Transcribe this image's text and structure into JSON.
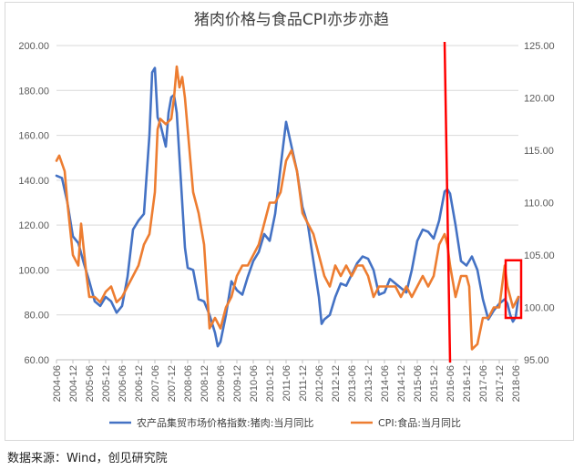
{
  "chart_data": {
    "type": "line",
    "title": "猪肉价格与食品CPI亦步亦趋",
    "y_left": {
      "ylim": [
        60,
        200
      ],
      "ticks": [
        "60.00",
        "80.00",
        "100.00",
        "120.00",
        "140.00",
        "160.00",
        "180.00",
        "200.00"
      ]
    },
    "y_right": {
      "ylim": [
        95,
        125
      ],
      "ticks": [
        "95.00",
        "100.00",
        "105.00",
        "110.00",
        "115.00",
        "120.00",
        "125.00"
      ]
    },
    "x_ticks": [
      "2004-06",
      "2004-12",
      "2005-06",
      "2005-12",
      "2006-06",
      "2006-12",
      "2007-06",
      "2007-12",
      "2008-06",
      "2008-12",
      "2009-06",
      "2009-12",
      "2010-06",
      "2010-12",
      "2011-06",
      "2011-12",
      "2012-06",
      "2012-12",
      "2013-06",
      "2013-12",
      "2014-06",
      "2014-12",
      "2015-06",
      "2015-12",
      "2016-06",
      "2016-12",
      "2017-06",
      "2017-12",
      "2018-06"
    ],
    "grid": "horizontal",
    "legend_position": "bottom",
    "series": [
      {
        "name": "农产品集贸市场价格指数:猪肉:当月同比",
        "axis": "left",
        "color": "#4472c4",
        "points": [
          [
            "2004-06",
            142
          ],
          [
            "2004-08",
            141
          ],
          [
            "2004-10",
            130
          ],
          [
            "2004-12",
            115
          ],
          [
            "2005-02",
            112
          ],
          [
            "2005-04",
            103
          ],
          [
            "2005-06",
            95
          ],
          [
            "2005-08",
            86
          ],
          [
            "2005-10",
            84
          ],
          [
            "2005-12",
            88
          ],
          [
            "2006-02",
            86
          ],
          [
            "2006-04",
            81
          ],
          [
            "2006-06",
            84
          ],
          [
            "2006-08",
            97
          ],
          [
            "2006-10",
            118
          ],
          [
            "2006-12",
            122
          ],
          [
            "2007-02",
            125
          ],
          [
            "2007-04",
            160
          ],
          [
            "2007-05",
            188
          ],
          [
            "2007-06",
            190
          ],
          [
            "2007-07",
            168
          ],
          [
            "2007-08",
            165
          ],
          [
            "2007-10",
            155
          ],
          [
            "2007-11",
            170
          ],
          [
            "2007-12",
            177
          ],
          [
            "2008-01",
            178
          ],
          [
            "2008-02",
            170
          ],
          [
            "2008-03",
            150
          ],
          [
            "2008-04",
            130
          ],
          [
            "2008-05",
            110
          ],
          [
            "2008-06",
            101
          ],
          [
            "2008-08",
            100
          ],
          [
            "2008-10",
            87
          ],
          [
            "2008-12",
            86
          ],
          [
            "2009-02",
            80
          ],
          [
            "2009-04",
            72
          ],
          [
            "2009-05",
            66
          ],
          [
            "2009-06",
            68
          ],
          [
            "2009-08",
            80
          ],
          [
            "2009-10",
            95
          ],
          [
            "2009-12",
            91
          ],
          [
            "2010-02",
            89
          ],
          [
            "2010-04",
            97
          ],
          [
            "2010-06",
            104
          ],
          [
            "2010-08",
            108
          ],
          [
            "2010-10",
            116
          ],
          [
            "2010-12",
            113
          ],
          [
            "2011-02",
            125
          ],
          [
            "2011-04",
            146
          ],
          [
            "2011-06",
            166
          ],
          [
            "2011-08",
            155
          ],
          [
            "2011-10",
            144
          ],
          [
            "2011-12",
            128
          ],
          [
            "2012-02",
            120
          ],
          [
            "2012-04",
            104
          ],
          [
            "2012-06",
            88
          ],
          [
            "2012-07",
            76
          ],
          [
            "2012-08",
            78
          ],
          [
            "2012-10",
            80
          ],
          [
            "2012-12",
            88
          ],
          [
            "2013-02",
            94
          ],
          [
            "2013-04",
            93
          ],
          [
            "2013-06",
            98
          ],
          [
            "2013-08",
            103
          ],
          [
            "2013-10",
            106
          ],
          [
            "2013-12",
            105
          ],
          [
            "2014-02",
            100
          ],
          [
            "2014-04",
            89
          ],
          [
            "2014-06",
            90
          ],
          [
            "2014-08",
            96
          ],
          [
            "2014-10",
            94
          ],
          [
            "2014-12",
            92
          ],
          [
            "2015-02",
            90
          ],
          [
            "2015-04",
            100
          ],
          [
            "2015-06",
            113
          ],
          [
            "2015-08",
            118
          ],
          [
            "2015-10",
            117
          ],
          [
            "2015-12",
            114
          ],
          [
            "2016-02",
            122
          ],
          [
            "2016-04",
            135
          ],
          [
            "2016-05",
            136
          ],
          [
            "2016-06",
            134
          ],
          [
            "2016-08",
            120
          ],
          [
            "2016-10",
            104
          ],
          [
            "2016-12",
            102
          ],
          [
            "2017-02",
            106
          ],
          [
            "2017-04",
            100
          ],
          [
            "2017-06",
            87
          ],
          [
            "2017-08",
            78
          ],
          [
            "2017-10",
            82
          ],
          [
            "2017-12",
            85
          ],
          [
            "2018-02",
            87
          ],
          [
            "2018-03",
            85
          ],
          [
            "2018-04",
            80
          ],
          [
            "2018-05",
            77
          ],
          [
            "2018-06",
            79
          ],
          [
            "2018-07",
            88
          ]
        ]
      },
      {
        "name": "CPI:食品:当月同比",
        "axis": "right",
        "color": "#ed7d31",
        "points": [
          [
            "2004-06",
            114
          ],
          [
            "2004-07",
            114.5
          ],
          [
            "2004-09",
            113
          ],
          [
            "2004-10",
            110
          ],
          [
            "2004-12",
            105
          ],
          [
            "2005-02",
            104
          ],
          [
            "2005-03",
            108
          ],
          [
            "2005-05",
            103
          ],
          [
            "2005-06",
            101
          ],
          [
            "2005-08",
            101
          ],
          [
            "2005-10",
            100.5
          ],
          [
            "2005-12",
            101.5
          ],
          [
            "2006-02",
            102
          ],
          [
            "2006-04",
            100.5
          ],
          [
            "2006-06",
            101
          ],
          [
            "2006-08",
            102
          ],
          [
            "2006-10",
            103
          ],
          [
            "2006-12",
            104
          ],
          [
            "2007-02",
            106
          ],
          [
            "2007-04",
            107
          ],
          [
            "2007-06",
            111
          ],
          [
            "2007-07",
            117
          ],
          [
            "2007-08",
            118
          ],
          [
            "2007-10",
            117.5
          ],
          [
            "2007-12",
            118
          ],
          [
            "2008-01",
            120
          ],
          [
            "2008-02",
            123
          ],
          [
            "2008-03",
            121
          ],
          [
            "2008-04",
            122
          ],
          [
            "2008-05",
            120
          ],
          [
            "2008-06",
            117
          ],
          [
            "2008-08",
            111
          ],
          [
            "2008-10",
            109
          ],
          [
            "2008-12",
            106
          ],
          [
            "2009-02",
            98
          ],
          [
            "2009-04",
            99
          ],
          [
            "2009-06",
            98
          ],
          [
            "2009-08",
            100
          ],
          [
            "2009-10",
            101
          ],
          [
            "2009-12",
            103
          ],
          [
            "2010-02",
            104
          ],
          [
            "2010-04",
            104
          ],
          [
            "2010-06",
            105
          ],
          [
            "2010-08",
            106
          ],
          [
            "2010-10",
            108
          ],
          [
            "2010-12",
            110
          ],
          [
            "2011-02",
            110
          ],
          [
            "2011-04",
            111
          ],
          [
            "2011-06",
            114
          ],
          [
            "2011-08",
            115
          ],
          [
            "2011-10",
            113
          ],
          [
            "2011-12",
            109
          ],
          [
            "2012-02",
            108
          ],
          [
            "2012-04",
            107
          ],
          [
            "2012-06",
            105
          ],
          [
            "2012-08",
            103
          ],
          [
            "2012-10",
            102
          ],
          [
            "2012-12",
            104
          ],
          [
            "2013-02",
            103
          ],
          [
            "2013-04",
            104
          ],
          [
            "2013-06",
            103
          ],
          [
            "2013-08",
            104
          ],
          [
            "2013-10",
            104
          ],
          [
            "2013-12",
            103
          ],
          [
            "2014-02",
            101
          ],
          [
            "2014-04",
            102
          ],
          [
            "2014-06",
            102
          ],
          [
            "2014-08",
            102
          ],
          [
            "2014-10",
            102
          ],
          [
            "2014-12",
            101
          ],
          [
            "2015-02",
            102
          ],
          [
            "2015-04",
            101
          ],
          [
            "2015-06",
            102
          ],
          [
            "2015-08",
            103
          ],
          [
            "2015-10",
            102
          ],
          [
            "2015-12",
            103
          ],
          [
            "2016-02",
            106
          ],
          [
            "2016-04",
            107
          ],
          [
            "2016-05",
            106
          ],
          [
            "2016-06",
            104
          ],
          [
            "2016-08",
            101
          ],
          [
            "2016-10",
            103
          ],
          [
            "2016-12",
            103
          ],
          [
            "2017-01",
            102
          ],
          [
            "2017-02",
            96
          ],
          [
            "2017-04",
            96.5
          ],
          [
            "2017-06",
            99
          ],
          [
            "2017-08",
            99
          ],
          [
            "2017-10",
            100
          ],
          [
            "2017-12",
            100
          ],
          [
            "2018-02",
            104
          ],
          [
            "2018-03",
            102
          ],
          [
            "2018-04",
            101
          ],
          [
            "2018-05",
            100
          ],
          [
            "2018-06",
            100.5
          ],
          [
            "2018-07",
            101
          ]
        ]
      }
    ],
    "annotations": {
      "vertical_line": {
        "date": "2016-06",
        "color": "#ff0000"
      },
      "highlight_box": {
        "from": "2018-02",
        "to": "2018-07",
        "y_right_range": [
          99,
          104.5
        ],
        "color": "#ff0000"
      }
    }
  },
  "source": "数据来源：Wind，创见研究院"
}
